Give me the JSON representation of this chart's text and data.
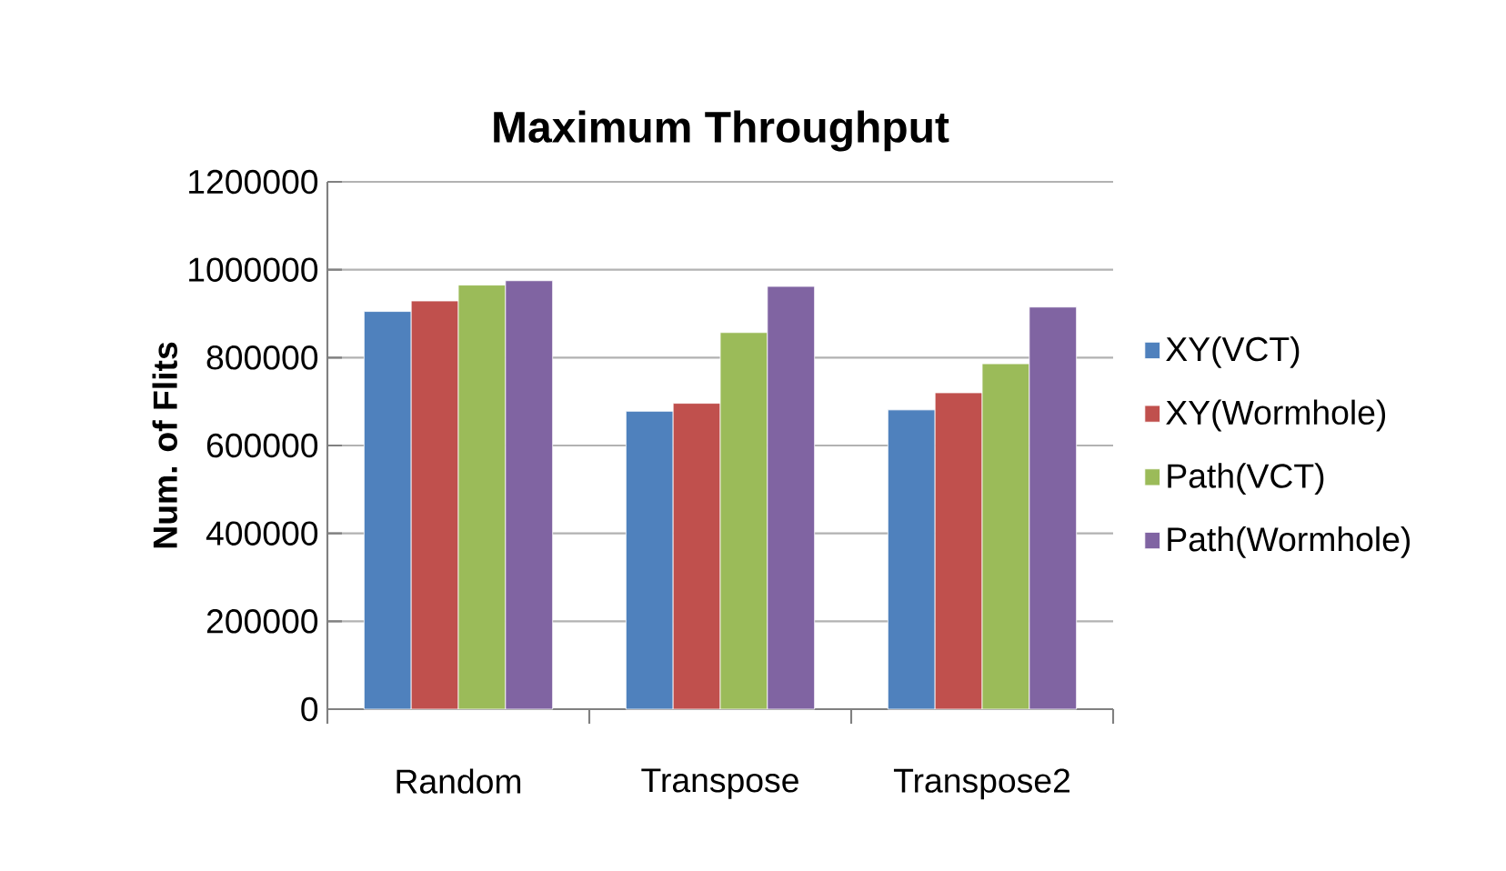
{
  "chart_data": {
    "type": "bar",
    "title": "Maximum Throughput",
    "ylabel": "Num. of Flits",
    "categories": [
      "Random",
      "Transpose",
      "Transpose2"
    ],
    "series": [
      {
        "name": "XY(VCT)",
        "color": "#4f81bd",
        "values": [
          905000,
          678000,
          681000
        ]
      },
      {
        "name": "XY(Wormhole)",
        "color": "#c0504d",
        "values": [
          929000,
          696000,
          720000
        ]
      },
      {
        "name": "Path(VCT)",
        "color": "#9bbb59",
        "values": [
          965000,
          857000,
          786000
        ]
      },
      {
        "name": "Path(Wormhole)",
        "color": "#8064a2",
        "values": [
          975000,
          962000,
          915000
        ]
      }
    ],
    "ylim": [
      0,
      1200000
    ],
    "yticks": [
      0,
      200000,
      400000,
      600000,
      800000,
      1000000,
      1200000
    ],
    "grid": "y",
    "legend": "right"
  }
}
